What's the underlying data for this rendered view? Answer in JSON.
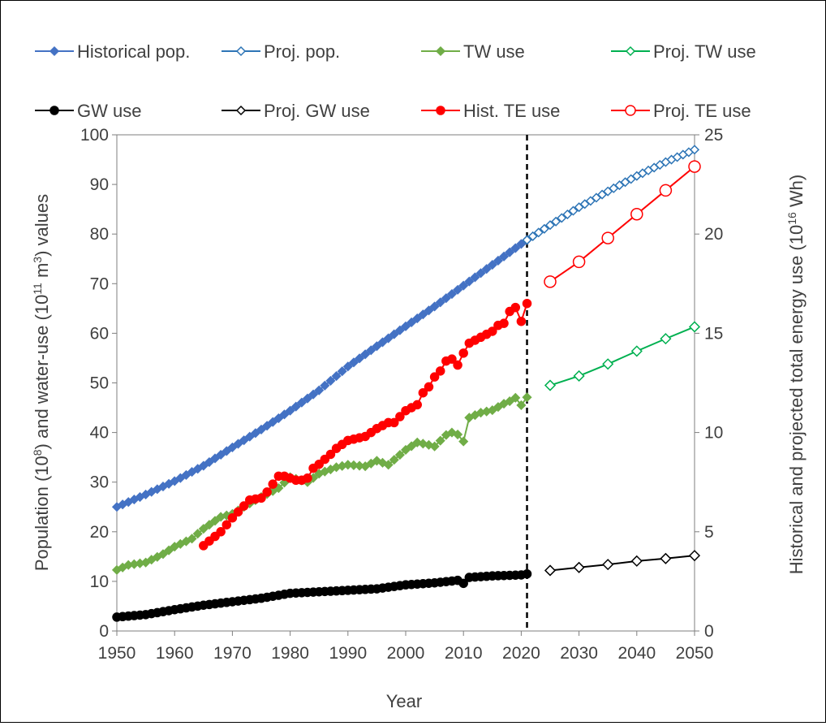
{
  "chart_data": {
    "type": "line",
    "title": "",
    "xlabel": "Year",
    "ylabel_left": "Population (10^8) and water-use (10^11 m^3) values",
    "ylabel_right": "Historical and projected total energy use (10^16 Wh)",
    "xlim": [
      1950,
      2050
    ],
    "ylim_left": [
      0,
      100
    ],
    "ylim_right": [
      0,
      25
    ],
    "x_ticks": [
      1950,
      1960,
      1970,
      1980,
      1990,
      2000,
      2010,
      2020,
      2030,
      2040,
      2050
    ],
    "y_ticks_left": [
      0,
      10,
      20,
      30,
      40,
      50,
      60,
      70,
      80,
      90,
      100
    ],
    "y_ticks_right": [
      0,
      5,
      10,
      15,
      20,
      25
    ],
    "grid": false,
    "legend_position": "top",
    "reference_line": {
      "x": 2021,
      "style": "dashed",
      "color": "#000000"
    },
    "series": [
      {
        "name": "Historical pop.",
        "axis": "left",
        "color": "#4472C4",
        "marker": "filled-diamond",
        "x": [
          1950,
          1955,
          1960,
          1965,
          1970,
          1975,
          1980,
          1985,
          1990,
          1995,
          2000,
          2005,
          2010,
          2015,
          2020,
          2021
        ],
        "y": [
          25.0,
          27.5,
          30.2,
          33.3,
          37.0,
          40.6,
          44.4,
          48.5,
          53.3,
          57.4,
          61.4,
          65.4,
          69.6,
          73.8,
          78.0,
          78.8
        ]
      },
      {
        "name": "Proj. pop.",
        "axis": "left",
        "color": "#2E75B6",
        "marker": "open-diamond",
        "x": [
          2021,
          2025,
          2030,
          2035,
          2040,
          2045,
          2050
        ],
        "y": [
          78.8,
          81.8,
          85.4,
          88.6,
          91.7,
          94.5,
          97.0
        ]
      },
      {
        "name": "TW use",
        "axis": "left",
        "color": "#70AD47",
        "marker": "filled-diamond",
        "x": [
          1950,
          1952,
          1955,
          1958,
          1960,
          1963,
          1965,
          1968,
          1970,
          1973,
          1975,
          1978,
          1980,
          1983,
          1985,
          1988,
          1990,
          1993,
          1995,
          1997,
          2000,
          2002,
          2004,
          2005,
          2007,
          2008,
          2009,
          2010,
          2011,
          2013,
          2015,
          2017,
          2018,
          2019,
          2020,
          2021
        ],
        "y": [
          12.3,
          13.3,
          13.8,
          15.5,
          17.0,
          18.6,
          20.6,
          23.0,
          23.6,
          25.7,
          27.0,
          28.8,
          31.0,
          30.0,
          31.7,
          33.0,
          33.5,
          33.2,
          34.3,
          33.5,
          36.5,
          38.0,
          37.5,
          37.2,
          39.5,
          40.0,
          39.6,
          38.2,
          43.0,
          44.0,
          44.5,
          45.8,
          46.3,
          47.0,
          45.5,
          47.1
        ]
      },
      {
        "name": "Proj. TW use",
        "axis": "left",
        "color": "#00B050",
        "marker": "open-diamond",
        "x": [
          2025,
          2030,
          2035,
          2040,
          2045,
          2050
        ],
        "y": [
          49.5,
          51.4,
          53.8,
          56.4,
          58.9,
          61.3
        ]
      },
      {
        "name": "GW use",
        "axis": "left",
        "color": "#000000",
        "marker": "filled-circle",
        "x": [
          1950,
          1955,
          1960,
          1965,
          1970,
          1975,
          1980,
          1985,
          1990,
          1995,
          2000,
          2005,
          2009,
          2010,
          2011,
          2015,
          2020,
          2021
        ],
        "y": [
          2.8,
          3.3,
          4.3,
          5.2,
          5.9,
          6.6,
          7.6,
          7.9,
          8.2,
          8.5,
          9.3,
          9.7,
          10.2,
          9.6,
          10.8,
          11.1,
          11.3,
          11.5
        ]
      },
      {
        "name": "Proj. GW use",
        "axis": "left",
        "color": "#000000",
        "marker": "open-diamond",
        "x": [
          2025,
          2030,
          2035,
          2040,
          2045,
          2050
        ],
        "y": [
          12.2,
          12.8,
          13.4,
          14.1,
          14.6,
          15.2
        ]
      },
      {
        "name": "Hist. TE use",
        "axis": "right",
        "color": "#FF0000",
        "marker": "filled-circle",
        "x": [
          1965,
          1968,
          1970,
          1972,
          1973,
          1975,
          1976,
          1977,
          1978,
          1979,
          1980,
          1981,
          1982,
          1983,
          1984,
          1985,
          1987,
          1988,
          1990,
          1993,
          1995,
          1997,
          1998,
          2000,
          2002,
          2003,
          2004,
          2005,
          2006,
          2007,
          2008,
          2009,
          2010,
          2011,
          2013,
          2015,
          2016,
          2017,
          2018,
          2019,
          2020,
          2021
        ],
        "y": [
          4.3,
          5.0,
          5.7,
          6.3,
          6.6,
          6.7,
          7.0,
          7.4,
          7.8,
          7.8,
          7.7,
          7.6,
          7.6,
          7.7,
          8.2,
          8.4,
          8.9,
          9.2,
          9.6,
          9.8,
          10.2,
          10.5,
          10.5,
          11.1,
          11.4,
          12.0,
          12.3,
          12.8,
          13.1,
          13.6,
          13.7,
          13.4,
          14.0,
          14.5,
          14.8,
          15.1,
          15.4,
          15.5,
          16.1,
          16.3,
          15.6,
          16.5
        ]
      },
      {
        "name": "Proj. TE use",
        "axis": "right",
        "color": "#FF0000",
        "marker": "open-circle",
        "x": [
          2025,
          2030,
          2035,
          2040,
          2045,
          2050
        ],
        "y": [
          17.6,
          18.6,
          19.8,
          21.0,
          22.2,
          23.4
        ]
      }
    ]
  }
}
